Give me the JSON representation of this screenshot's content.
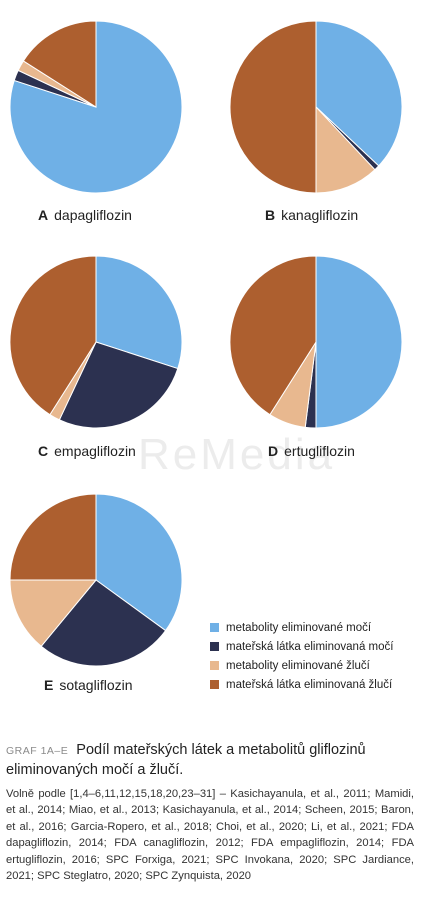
{
  "watermark": "ReMedia",
  "legend_colors": [
    "#6fb0e6",
    "#2c3150",
    "#e8b88f",
    "#ad5f2f"
  ],
  "chart_data": [
    {
      "type": "pie",
      "letter": "A",
      "title": "dapagliflozin",
      "categories": [
        "metabolity eliminované močí",
        "mateřská látka eliminovaná močí",
        "metabolity eliminované žlučí",
        "mateřská látka eliminovaná žlučí"
      ],
      "values": [
        80,
        2,
        2,
        16
      ]
    },
    {
      "type": "pie",
      "letter": "B",
      "title": "kanagliflozin",
      "categories": [
        "metabolity eliminované močí",
        "mateřská látka eliminovaná močí",
        "metabolity eliminované žlučí",
        "mateřská látka eliminovaná žlučí"
      ],
      "values": [
        37,
        1,
        12,
        50
      ]
    },
    {
      "type": "pie",
      "letter": "C",
      "title": "empagliflozin",
      "categories": [
        "metabolity eliminované močí",
        "mateřská látka eliminovaná močí",
        "metabolity eliminované žlučí",
        "mateřská látka eliminovaná žlučí"
      ],
      "values": [
        30,
        27,
        2,
        41
      ]
    },
    {
      "type": "pie",
      "letter": "D",
      "title": "ertugliflozin",
      "categories": [
        "metabolity eliminované močí",
        "mateřská látka eliminovaná močí",
        "metabolity eliminované žlučí",
        "mateřská látka eliminovaná žlučí"
      ],
      "values": [
        50,
        2,
        7,
        41
      ]
    },
    {
      "type": "pie",
      "letter": "E",
      "title": "sotagliflozin",
      "categories": [
        "metabolity eliminované močí",
        "mateřská látka eliminovaná močí",
        "metabolity eliminované žlučí",
        "mateřská látka eliminovaná žlučí"
      ],
      "values": [
        35,
        26,
        14,
        25
      ]
    }
  ],
  "legend": [
    "metabolity eliminované močí",
    "mateřská látka eliminovaná močí",
    "metabolity eliminované žlučí",
    "mateřská látka eliminovaná žlučí"
  ],
  "caption": {
    "tag": "GRAF 1A–E",
    "title": "Podíl mateřských látek a metabolitů gliflozinů eliminovaných močí a žlučí.",
    "references": "Volně podle [1,4–6,11,12,15,18,20,23–31] – Kasichayanula, et al., 2011; Mamidi, et al., 2014; Miao, et al., 2013; Kasichayanula, et al., 2014; Scheen, 2015; Baron, et al., 2016; Garcia-Ropero, et al., 2018; Choi, et al., 2020; Li, et al., 2021; FDA dapagliflozin, 2014; FDA canagliflozin, 2012; FDA empagliflozin, 2014; FDA ertugliflozin, 2016; SPC Forxiga, 2021; SPC Invokana, 2020; SPC Jardiance, 2021; SPC Steglatro, 2020; SPC Zynquista, 2020"
  }
}
